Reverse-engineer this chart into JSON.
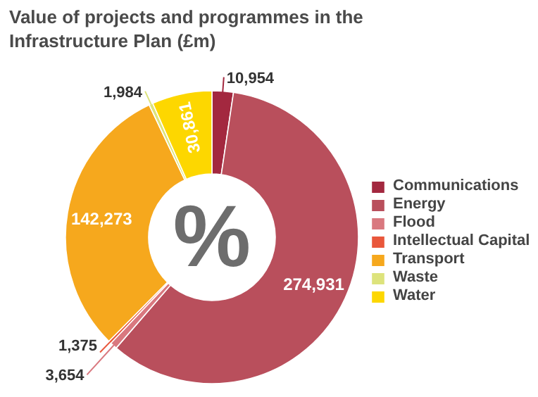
{
  "chart_data": {
    "type": "donut",
    "title": "Value of projects and programmes in the Infrastructure Plan (£m)",
    "categories": [
      "Communications",
      "Energy",
      "Flood",
      "Intellectual Capital",
      "Transport",
      "Waste",
      "Water"
    ],
    "values": [
      10954,
      274931,
      3654,
      1375,
      142273,
      1984,
      30861
    ],
    "colors": [
      "#a3283f",
      "#b94f5c",
      "#d9787f",
      "#e9573b",
      "#f6a81d",
      "#dde37c",
      "#fdd700"
    ],
    "value_labels": [
      "10,954",
      "274,931",
      "3,654",
      "1,375",
      "142,273",
      "1,984",
      "30,861"
    ],
    "legend": "right",
    "annotations": [
      "%"
    ]
  }
}
